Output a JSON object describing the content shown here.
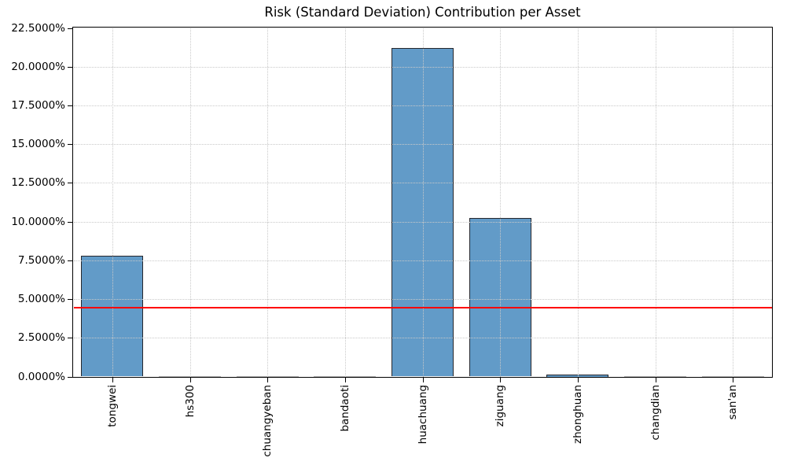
{
  "chart_data": {
    "type": "bar",
    "title": "Risk (Standard Deviation) Contribution per Asset",
    "categories": [
      "tongwei",
      "hs300",
      "chuangyeban",
      "bandaoti",
      "huachuang",
      "ziguang",
      "zhonghuan",
      "changdian",
      "san'an"
    ],
    "values": [
      7.78,
      0.01,
      0.01,
      0.01,
      21.23,
      10.24,
      0.08,
      0.01,
      0.01
    ],
    "value_unit": "%",
    "xlabel": "",
    "ylabel": "",
    "ylim": [
      0,
      22.5
    ],
    "ytick_values": [
      0,
      2.5,
      5,
      7.5,
      10,
      12.5,
      15,
      17.5,
      20,
      22.5
    ],
    "ytick_labels": [
      "0.0000%",
      "2.5000%",
      "5.0000%",
      "7.5000%",
      "10.0000%",
      "12.5000%",
      "15.0000%",
      "17.5000%",
      "20.0000%",
      "22.5000%"
    ],
    "grid": "dotted, both axes",
    "legend": "none",
    "reference_line": {
      "value": 4.45,
      "color": "#ff0000"
    },
    "colors": {
      "bar_fill": "#629BC8",
      "bar_edge": "#26272d",
      "near_zero_bar": "#b3b3b3",
      "gridline": "#c9c9c9",
      "axis": "#000000",
      "reference_line": "#ff0000",
      "background": "#ffffff"
    }
  }
}
